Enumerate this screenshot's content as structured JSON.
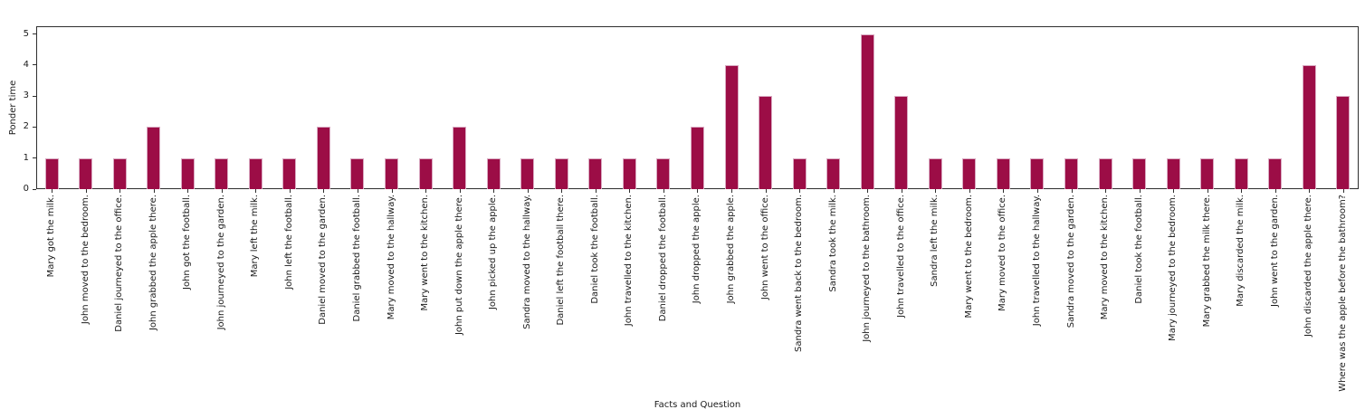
{
  "chart_data": {
    "type": "bar",
    "title": "",
    "xlabel": "Facts and Question",
    "ylabel": "Ponder time",
    "categories": [
      "Mary got the milk.",
      "John moved to the bedroom.",
      "Daniel journeyed to the office.",
      "John grabbed the apple there.",
      "John got the football.",
      "John journeyed to the garden.",
      "Mary left the milk.",
      "John left the football.",
      "Daniel moved to the garden.",
      "Daniel grabbed the football.",
      "Mary moved to the hallway.",
      "Mary went to the kitchen.",
      "John put down the apple there.",
      "John picked up the apple.",
      "Sandra moved to the hallway.",
      "Daniel left the football there.",
      "Daniel took the football.",
      "John travelled to the kitchen.",
      "Daniel dropped the football.",
      "John dropped the apple.",
      "John grabbed the apple.",
      "John went to the office.",
      "Sandra went back to the bedroom.",
      "Sandra took the milk.",
      "John journeyed to the bathroom.",
      "John travelled to the office.",
      "Sandra left the milk.",
      "Mary went to the bedroom.",
      "Mary moved to the office.",
      "John travelled to the hallway.",
      "Sandra moved to the garden.",
      "Mary moved to the kitchen.",
      "Daniel took the football.",
      "Mary journeyed to the bedroom.",
      "Mary grabbed the milk there.",
      "Mary discarded the milk.",
      "John went to the garden.",
      "John discarded the apple there.",
      "Where was the apple before the bathroom?"
    ],
    "values": [
      1,
      1,
      1,
      2,
      1,
      1,
      1,
      1,
      2,
      1,
      1,
      1,
      2,
      1,
      1,
      1,
      1,
      1,
      1,
      2,
      4,
      3,
      1,
      1,
      5,
      3,
      1,
      1,
      1,
      1,
      1,
      1,
      1,
      1,
      1,
      1,
      1,
      4,
      3
    ],
    "yticks": [
      0,
      1,
      2,
      3,
      4,
      5
    ],
    "ylim": [
      0,
      5.25
    ],
    "grid": false,
    "legend": null,
    "bar_color": "#9c0d46",
    "bar_edge_color": "#d9a9c1",
    "axis_color": "#2f2f2f"
  }
}
